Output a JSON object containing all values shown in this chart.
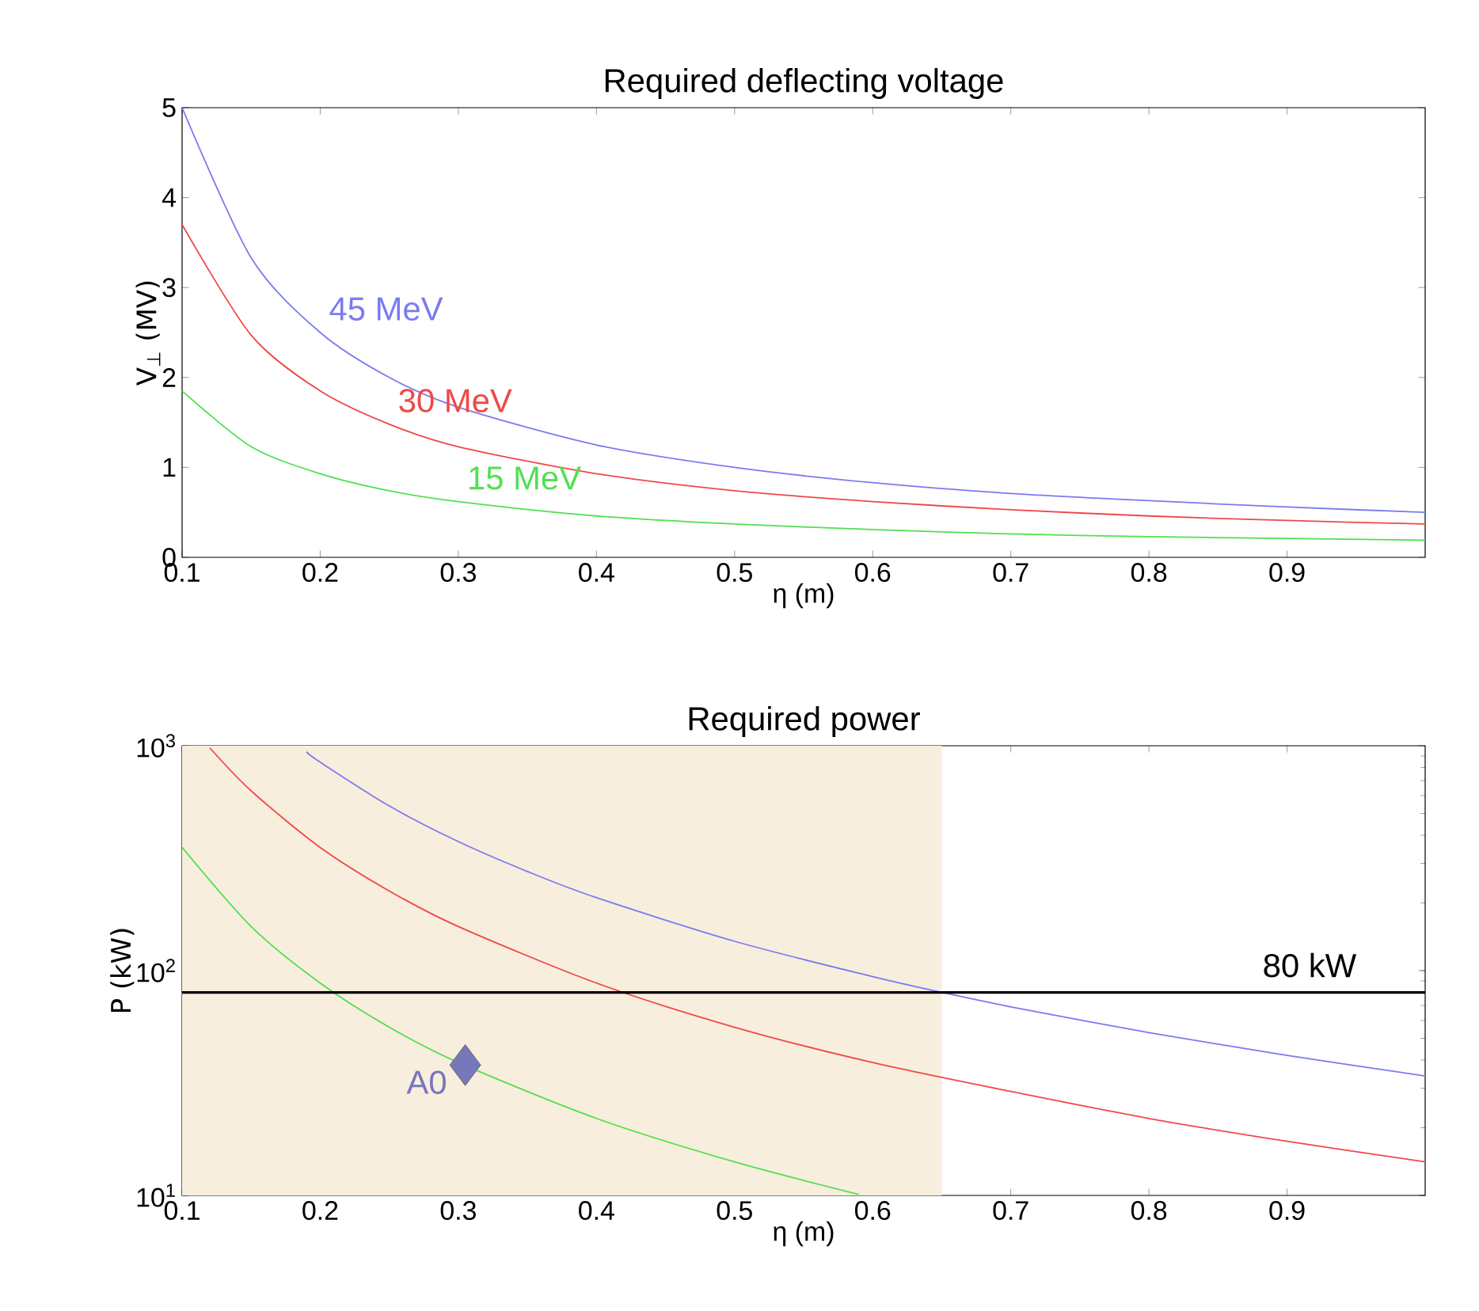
{
  "chart_data": [
    {
      "type": "line",
      "title": "Required deflecting voltage",
      "xlabel": "η (m)",
      "ylabel": "V$_{⊥}$ (MV)",
      "x": [
        0.1,
        0.15,
        0.2,
        0.25,
        0.3,
        0.4,
        0.5,
        0.6,
        0.7,
        0.8,
        0.9,
        1.0
      ],
      "xlim": [
        0.1,
        1.0
      ],
      "ylim": [
        0,
        5
      ],
      "xticks": [
        0.1,
        0.2,
        0.3,
        0.4,
        0.5,
        0.6,
        0.7,
        0.8,
        0.9
      ],
      "yticks": [
        0,
        1,
        2,
        3,
        4,
        5
      ],
      "grid": false,
      "series": [
        {
          "name": "45 MeV",
          "color": "#7b7bf0",
          "values": [
            5.0,
            3.33,
            2.5,
            2.0,
            1.67,
            1.25,
            1.0,
            0.83,
            0.71,
            0.63,
            0.56,
            0.5
          ]
        },
        {
          "name": "30 MeV",
          "color": "#f04848",
          "values": [
            3.7,
            2.47,
            1.85,
            1.48,
            1.23,
            0.93,
            0.74,
            0.62,
            0.53,
            0.46,
            0.41,
            0.37
          ]
        },
        {
          "name": "15 MeV",
          "color": "#50e050",
          "values": [
            1.85,
            1.23,
            0.93,
            0.74,
            0.62,
            0.46,
            0.37,
            0.31,
            0.26,
            0.23,
            0.21,
            0.19
          ]
        }
      ]
    },
    {
      "type": "line",
      "title": "Required power",
      "xlabel": "η (m)",
      "ylabel": "P (kW)",
      "log": true,
      "xlim": [
        0.1,
        1.0
      ],
      "ylim": [
        10,
        1000
      ],
      "xticks": [
        0.1,
        0.2,
        0.3,
        0.4,
        0.5,
        0.6,
        0.7,
        0.8,
        0.9
      ],
      "yticks": [
        {
          "value": 10,
          "label": "10$^{1}$"
        },
        {
          "value": 100,
          "label": "10$^{2}$"
        },
        {
          "value": 1000,
          "label": "10$^{3}$"
        }
      ],
      "grid": false,
      "bands": [
        {
          "axis": "x",
          "from": 0.1,
          "to": 0.65,
          "color": "#f8eedd"
        }
      ],
      "ref_lines": [
        {
          "axis": "y",
          "value": 80,
          "label": "80 kW",
          "color": "#000000"
        }
      ],
      "series": [
        {
          "color": "#7b7bf0",
          "x": [
            0.19,
            0.2,
            0.25,
            0.3,
            0.35,
            0.4,
            0.5,
            0.6,
            0.65,
            0.7,
            0.8,
            0.9,
            1.0
          ],
          "values": [
            940,
            845,
            540,
            375,
            276,
            211,
            135,
            94,
            80,
            69,
            53,
            42,
            34
          ]
        },
        {
          "color": "#f04848",
          "x": [
            0.12,
            0.15,
            0.2,
            0.25,
            0.3,
            0.4,
            0.5,
            0.6,
            0.7,
            0.8,
            0.9,
            1.0
          ],
          "values": [
            980,
            630,
            353,
            226,
            157,
            88,
            56,
            39,
            29,
            22,
            17.4,
            14.1
          ]
        },
        {
          "color": "#50e050",
          "x": [
            0.1,
            0.15,
            0.2,
            0.25,
            0.3,
            0.4,
            0.5,
            0.59
          ],
          "values": [
            353,
            157,
            88,
            56,
            39,
            22,
            14.1,
            10.1
          ]
        },
        {
          "type": "scatter",
          "name": "A0",
          "color": "#7777bb",
          "marker": "diamond",
          "x": [
            0.305
          ],
          "values": [
            38
          ]
        }
      ]
    }
  ]
}
